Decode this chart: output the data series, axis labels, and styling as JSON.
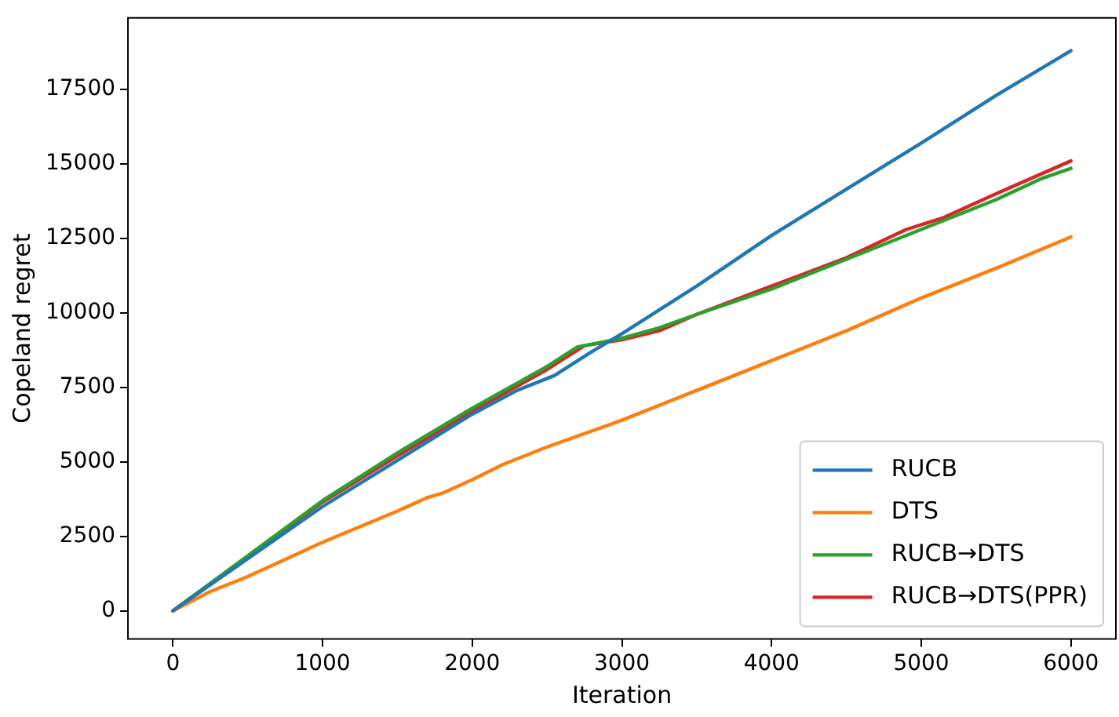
{
  "chart_data": {
    "type": "line",
    "xlabel": "Iteration",
    "ylabel": "Copeland regret",
    "xlim": [
      -300,
      6300
    ],
    "ylim": [
      -940,
      19900
    ],
    "xticks": [
      0,
      1000,
      2000,
      3000,
      4000,
      5000,
      6000
    ],
    "yticks": [
      0,
      2500,
      5000,
      7500,
      10000,
      12500,
      15000,
      17500
    ],
    "grid": false,
    "legend": "bottom right",
    "marker": "none",
    "line_style": "solid",
    "series": [
      {
        "name": "RUCB",
        "color": "#1f77b4",
        "x": [
          0,
          500,
          1000,
          1500,
          2000,
          2300,
          2550,
          2800,
          3000,
          3500,
          4000,
          4500,
          5000,
          5500,
          6000
        ],
        "values": [
          0,
          1750,
          3500,
          5050,
          6600,
          7400,
          7900,
          8700,
          9300,
          10900,
          12600,
          14150,
          15700,
          17300,
          18800
        ]
      },
      {
        "name": "DTS",
        "color": "#ff7f0e",
        "x": [
          0,
          250,
          500,
          1000,
          1500,
          1700,
          1800,
          2000,
          2200,
          2500,
          3000,
          3500,
          4000,
          4500,
          5000,
          5500,
          6000
        ],
        "values": [
          0,
          650,
          1150,
          2300,
          3350,
          3800,
          3950,
          4400,
          4900,
          5500,
          6400,
          7400,
          8400,
          9400,
          10500,
          11500,
          12550
        ]
      },
      {
        "name": "RUCB→DTS",
        "color": "#2ca02c",
        "x": [
          0,
          500,
          1000,
          1500,
          2000,
          2500,
          2700,
          2850,
          3000,
          3250,
          3500,
          4000,
          4500,
          5000,
          5500,
          5800,
          6000
        ],
        "values": [
          0,
          1850,
          3700,
          5300,
          6800,
          8200,
          8850,
          9000,
          9150,
          9500,
          9950,
          10800,
          11800,
          12800,
          13800,
          14500,
          14850
        ]
      },
      {
        "name": "RUCB→DTS(PPR)",
        "color": "#d62728",
        "x": [
          0,
          1000,
          1500,
          2000,
          2500,
          2750,
          3000,
          3250,
          3500,
          4000,
          4500,
          4900,
          5150,
          5500,
          6000
        ],
        "values": [
          0,
          3650,
          5200,
          6700,
          8100,
          8900,
          9100,
          9400,
          9950,
          10900,
          11850,
          12800,
          13200,
          14000,
          15100
        ]
      }
    ]
  }
}
